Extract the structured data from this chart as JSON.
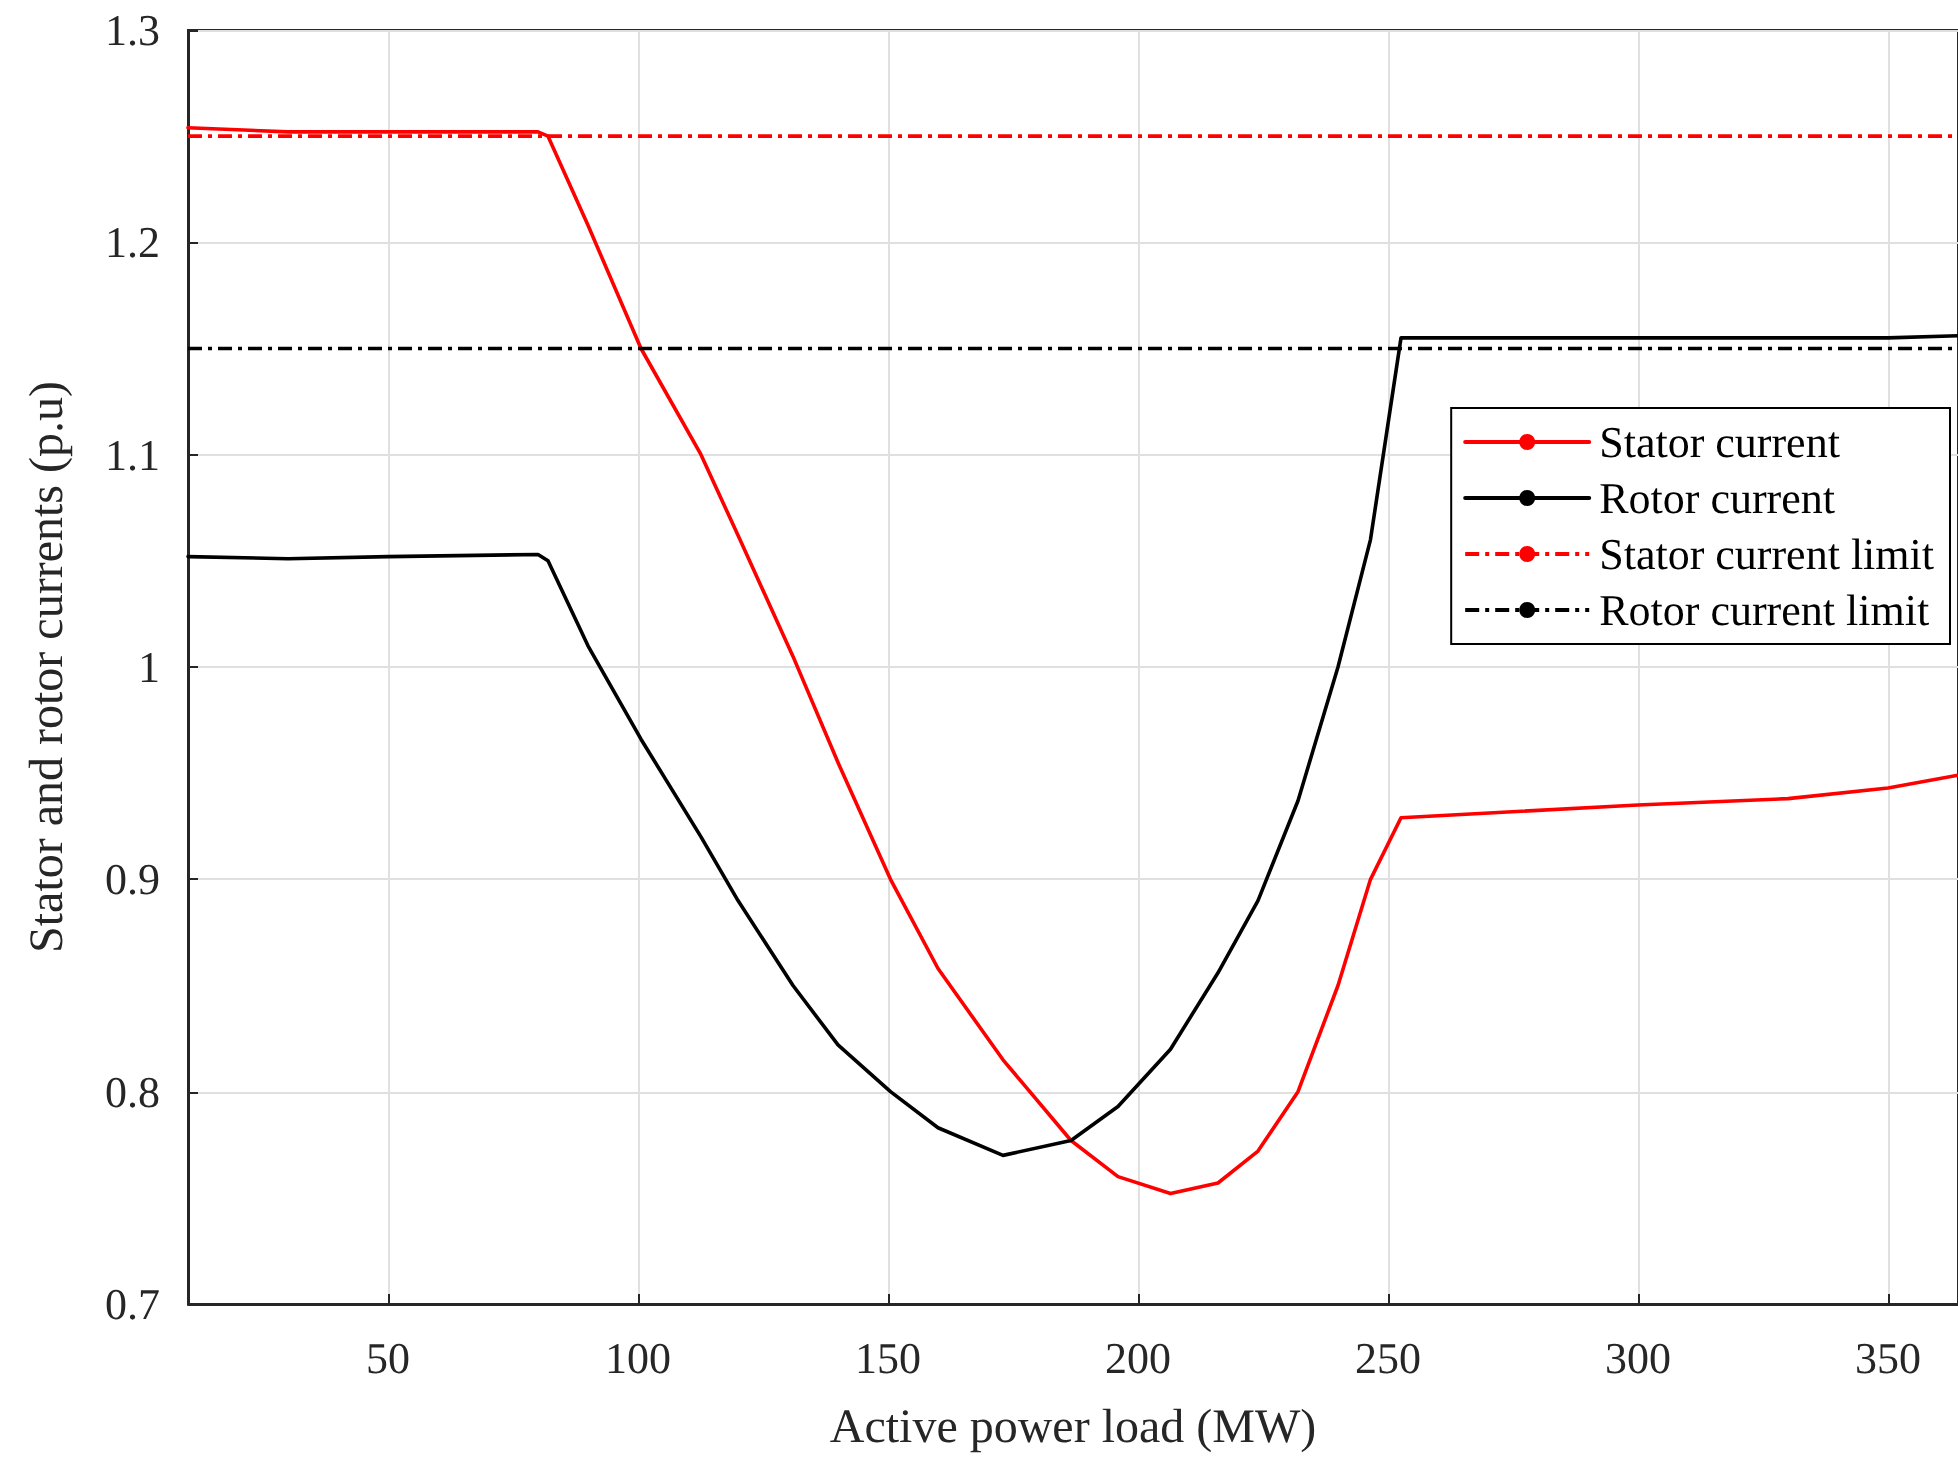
{
  "chart_data": {
    "type": "line",
    "xlabel": "Active power load (MW)",
    "ylabel": "Stator and rotor currents (p.u)",
    "x": [
      10,
      30,
      50,
      80,
      82,
      90,
      100.6,
      112.6,
      120,
      131,
      140,
      150.5,
      160,
      173,
      186.6,
      196,
      206.5,
      216,
      224,
      232,
      240,
      246.5,
      252.6,
      300,
      330,
      350,
      364
    ],
    "series": [
      {
        "name": "Stator current",
        "color": "#ff0000",
        "line_style": "solid",
        "values": [
          1.254,
          1.252,
          1.252,
          1.252,
          1.25,
          1.208,
          1.15,
          1.1,
          1.062,
          1.005,
          0.955,
          0.9,
          0.858,
          0.815,
          0.777,
          0.76,
          0.752,
          0.757,
          0.772,
          0.8,
          0.85,
          0.9,
          0.929,
          0.935,
          0.938,
          0.943,
          0.949
        ]
      },
      {
        "name": "Rotor current",
        "color": "#000000",
        "line_style": "solid",
        "values": [
          1.052,
          1.051,
          1.052,
          1.053,
          1.05,
          1.01,
          0.966,
          0.92,
          0.89,
          0.85,
          0.822,
          0.8,
          0.783,
          0.77,
          0.777,
          0.793,
          0.82,
          0.856,
          0.89,
          0.937,
          1.0,
          1.06,
          1.155,
          1.155,
          1.155,
          1.155,
          1.156
        ]
      }
    ],
    "ref_lines": [
      {
        "axis": "y",
        "value": 1.25,
        "label": "Stator current limit",
        "color": "#ff0000",
        "line_style": "dashed"
      },
      {
        "axis": "y",
        "value": 1.15,
        "label": "Rotor current limit",
        "color": "#000000",
        "line_style": "dashed"
      }
    ],
    "xlim": [
      10,
      364
    ],
    "xticks": [
      50,
      100,
      150,
      200,
      250,
      300,
      350
    ],
    "ylim": [
      0.7,
      1.3
    ],
    "yticks": [
      0.7,
      0.8,
      0.9,
      1,
      1.1,
      1.2,
      1.3
    ],
    "grid": true,
    "legend": "right",
    "marker": "none"
  }
}
